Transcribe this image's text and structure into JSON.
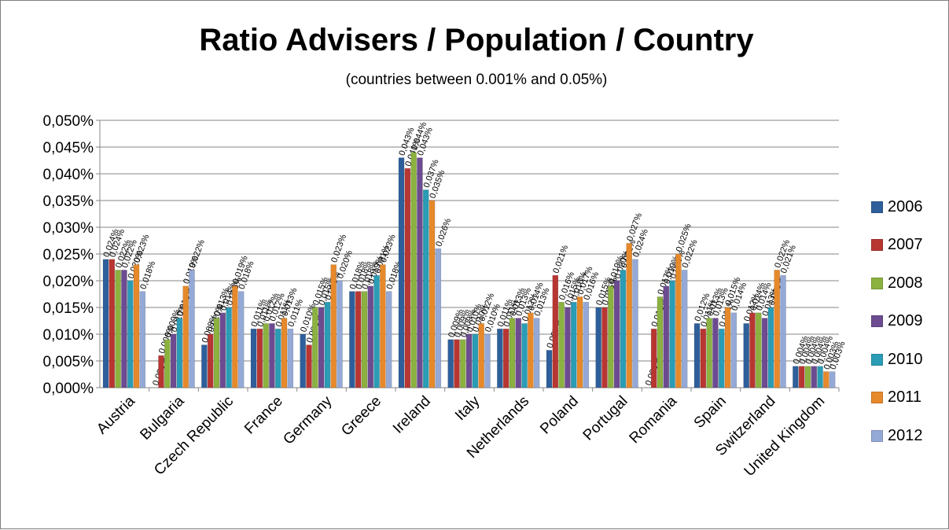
{
  "chart_data": {
    "type": "bar",
    "title": "Ratio Advisers / Population / Country",
    "subtitle": "(countries between 0.001% and 0.05%)",
    "ylim": [
      0,
      0.05
    ],
    "yticks": [
      "0,000%",
      "0,005%",
      "0,010%",
      "0,015%",
      "0,020%",
      "0,025%",
      "0,030%",
      "0,035%",
      "0,040%",
      "0,045%",
      "0,050%"
    ],
    "grid": true,
    "legend_position": "right",
    "categories": [
      "Austria",
      "Bulgaria",
      "Czech Republic",
      "France",
      "Germany",
      "Greece",
      "Ireland",
      "Italy",
      "Netherlands",
      "Poland",
      "Portugal",
      "Romania",
      "Spain",
      "Switzerland",
      "United Kingdom"
    ],
    "series": [
      {
        "name": "2006",
        "color": "#2E5F9B",
        "values": [
          0.024,
          0.0,
          0.008,
          0.011,
          0.01,
          0.018,
          0.043,
          0.009,
          0.011,
          0.007,
          0.015,
          0.0,
          0.012,
          0.012,
          0.004
        ]
      },
      {
        "name": "2007",
        "color": "#B83632",
        "values": [
          0.024,
          0.006,
          0.01,
          0.011,
          0.008,
          0.018,
          0.041,
          0.009,
          0.011,
          0.021,
          0.015,
          0.011,
          0.011,
          0.014,
          0.004
        ]
      },
      {
        "name": "2008",
        "color": "#8BB13F",
        "values": [
          0.022,
          0.009,
          0.013,
          0.012,
          0.015,
          0.018,
          0.044,
          0.009,
          0.013,
          0.016,
          0.019,
          0.017,
          0.013,
          0.014,
          0.004
        ]
      },
      {
        "name": "2009",
        "color": "#6C4B91",
        "values": [
          0.022,
          0.01,
          0.014,
          0.012,
          0.015,
          0.019,
          0.043,
          0.01,
          0.013,
          0.015,
          0.02,
          0.019,
          0.013,
          0.013,
          0.004
        ]
      },
      {
        "name": "2010",
        "color": "#2B9CB5",
        "values": [
          0.02,
          0.013,
          0.015,
          0.011,
          0.016,
          0.021,
          0.037,
          0.01,
          0.012,
          0.016,
          0.022,
          0.02,
          0.011,
          0.015,
          0.004
        ]
      },
      {
        "name": "2011",
        "color": "#E6892B",
        "values": [
          0.023,
          0.019,
          0.019,
          0.013,
          0.023,
          0.023,
          0.035,
          0.012,
          0.014,
          0.017,
          0.027,
          0.025,
          0.015,
          0.022,
          0.003
        ]
      },
      {
        "name": "2012",
        "color": "#94A9D6",
        "values": [
          0.018,
          0.022,
          0.018,
          0.011,
          0.02,
          0.018,
          0.026,
          0.01,
          0.013,
          0.016,
          0.024,
          0.022,
          0.014,
          0.021,
          0.003
        ]
      }
    ]
  }
}
